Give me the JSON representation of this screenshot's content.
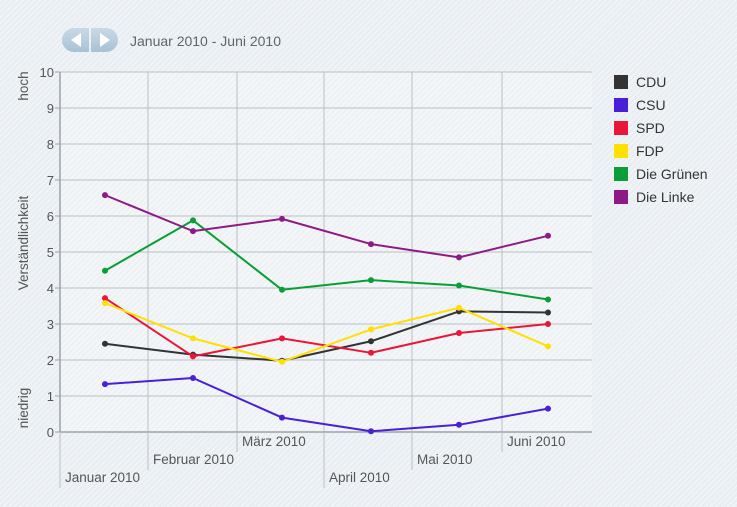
{
  "header": {
    "period_label": "Januar 2010 - Juni 2010",
    "prev_icon": "triangle-left-icon",
    "next_icon": "triangle-right-icon"
  },
  "chart_data": {
    "type": "line",
    "ylabel": "Verständlichkeit",
    "ylabel_low": "niedrig",
    "ylabel_high": "hoch",
    "ylim": [
      0,
      10
    ],
    "yticks": [
      "0",
      "1",
      "2",
      "3",
      "4",
      "5",
      "6",
      "7",
      "8",
      "9",
      "10"
    ],
    "categories": [
      "Januar 2010",
      "Februar 2010",
      "März 2010",
      "April 2010",
      "Mai 2010",
      "Juni 2010"
    ],
    "grid": true,
    "legend_position": "right",
    "series": [
      {
        "name": "CDU",
        "color": "#333333",
        "values": [
          2.45,
          2.15,
          1.98,
          2.52,
          3.35,
          3.32
        ]
      },
      {
        "name": "CSU",
        "color": "#4a1fd8",
        "values": [
          1.33,
          1.5,
          0.4,
          0.02,
          0.2,
          0.65
        ]
      },
      {
        "name": "SPD",
        "color": "#ea1637",
        "values": [
          3.72,
          2.1,
          2.6,
          2.2,
          2.75,
          3.0
        ]
      },
      {
        "name": "FDP",
        "color": "#ffe000",
        "values": [
          3.58,
          2.6,
          1.95,
          2.85,
          3.45,
          2.38
        ]
      },
      {
        "name": "Die Grünen",
        "color": "#099e37",
        "values": [
          4.48,
          5.88,
          3.95,
          4.22,
          4.07,
          3.68
        ]
      },
      {
        "name": "Die Linke",
        "color": "#8e1a88",
        "values": [
          6.58,
          5.58,
          5.92,
          5.22,
          4.85,
          5.45
        ]
      }
    ]
  }
}
